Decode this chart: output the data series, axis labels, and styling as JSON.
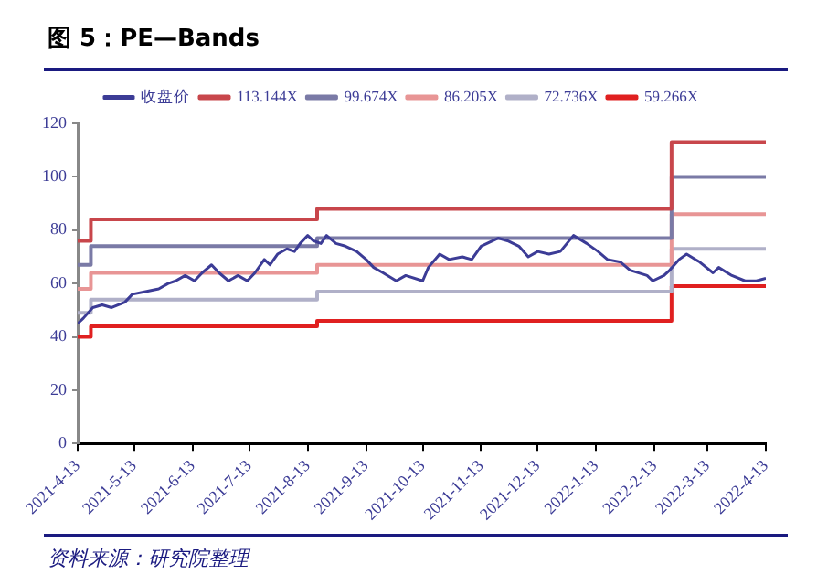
{
  "chart_data": {
    "type": "line",
    "title": "图 5：PE—Bands",
    "annotations": [
      "资料来源：研究院整理"
    ],
    "xlim": [
      "2021-04-13",
      "2022-04-13"
    ],
    "xticks": [
      {
        "value": "2021-04-13",
        "label": "2021-4-13"
      },
      {
        "value": "2021-05-13",
        "label": "2021-5-13"
      },
      {
        "value": "2021-06-13",
        "label": "2021-6-13"
      },
      {
        "value": "2021-07-13",
        "label": "2021-7-13"
      },
      {
        "value": "2021-08-13",
        "label": "2021-8-13"
      },
      {
        "value": "2021-09-13",
        "label": "2021-9-13"
      },
      {
        "value": "2021-10-13",
        "label": "2021-10-13"
      },
      {
        "value": "2021-11-13",
        "label": "2021-11-13"
      },
      {
        "value": "2021-12-13",
        "label": "2021-12-13"
      },
      {
        "value": "2022-01-13",
        "label": "2022-1-13"
      },
      {
        "value": "2022-02-13",
        "label": "2022-2-13"
      },
      {
        "value": "2022-03-13",
        "label": "2022-3-13"
      },
      {
        "value": "2022-04-13",
        "label": "2022-4-13"
      }
    ],
    "ylim": [
      0,
      120
    ],
    "yticks": [
      0,
      20,
      40,
      60,
      80,
      100,
      120
    ],
    "grid": false,
    "legend": "top",
    "marker": "none",
    "line_style": "solid",
    "series": [
      {
        "name": "收盘价",
        "color": "#3c3c96",
        "x": [
          "2021-04-13",
          "2021-04-16",
          "2021-04-21",
          "2021-04-26",
          "2021-05-01",
          "2021-05-08",
          "2021-05-12",
          "2021-05-19",
          "2021-05-26",
          "2021-05-31",
          "2021-06-04",
          "2021-06-09",
          "2021-06-14",
          "2021-06-18",
          "2021-06-23",
          "2021-06-27",
          "2021-07-02",
          "2021-07-07",
          "2021-07-12",
          "2021-07-16",
          "2021-07-21",
          "2021-07-24",
          "2021-07-28",
          "2021-08-02",
          "2021-08-06",
          "2021-08-09",
          "2021-08-13",
          "2021-08-16",
          "2021-08-20",
          "2021-08-23",
          "2021-08-28",
          "2021-09-02",
          "2021-09-08",
          "2021-09-13",
          "2021-09-17",
          "2021-09-22",
          "2021-09-29",
          "2021-10-04",
          "2021-10-13",
          "2021-10-16",
          "2021-10-22",
          "2021-10-27",
          "2021-11-03",
          "2021-11-08",
          "2021-11-13",
          "2021-11-22",
          "2021-11-27",
          "2021-12-03",
          "2021-12-08",
          "2021-12-13",
          "2021-12-19",
          "2021-12-25",
          "2022-01-01",
          "2022-01-08",
          "2022-01-14",
          "2022-01-19",
          "2022-01-26",
          "2022-01-31",
          "2022-02-09",
          "2022-02-12",
          "2022-02-18",
          "2022-02-21",
          "2022-02-26",
          "2022-03-02",
          "2022-03-09",
          "2022-03-16",
          "2022-03-19",
          "2022-03-26",
          "2022-04-02",
          "2022-04-08",
          "2022-04-13"
        ],
        "values": [
          45,
          47,
          51,
          52,
          51,
          53,
          56,
          57,
          58,
          60,
          61,
          63,
          61,
          64,
          67,
          64,
          61,
          63,
          61,
          64,
          69,
          67,
          71,
          73,
          72,
          75,
          78,
          76,
          75,
          78,
          75,
          74,
          72,
          69,
          66,
          64,
          61,
          63,
          61,
          66,
          71,
          69,
          70,
          69,
          74,
          77,
          76,
          74,
          70,
          72,
          71,
          72,
          78,
          75,
          72,
          69,
          68,
          65,
          63,
          61,
          63,
          65,
          69,
          71,
          68,
          64,
          66,
          63,
          61,
          61,
          62
        ]
      },
      {
        "name": "113.144X",
        "type": "step",
        "color": "#c8464b",
        "x": [
          "2021-04-13",
          "2021-04-20",
          "2021-08-18",
          "2022-02-22",
          "2022-04-13"
        ],
        "values": [
          76,
          84,
          88,
          113,
          113
        ]
      },
      {
        "name": "99.674X",
        "type": "step",
        "color": "#7a7aa6",
        "x": [
          "2021-04-13",
          "2021-04-20",
          "2021-08-18",
          "2022-02-22",
          "2022-04-13"
        ],
        "values": [
          67,
          74,
          77,
          100,
          100
        ]
      },
      {
        "name": "86.205X",
        "type": "step",
        "color": "#e89595",
        "x": [
          "2021-04-13",
          "2021-04-20",
          "2021-08-18",
          "2022-02-22",
          "2022-04-13"
        ],
        "values": [
          58,
          64,
          67,
          86,
          86
        ]
      },
      {
        "name": "72.736X",
        "type": "step",
        "color": "#b0b0c8",
        "x": [
          "2021-04-13",
          "2021-04-20",
          "2021-08-18",
          "2022-02-22",
          "2022-04-13"
        ],
        "values": [
          49,
          54,
          57,
          73,
          73
        ]
      },
      {
        "name": "59.266X",
        "type": "step",
        "color": "#e02020",
        "x": [
          "2021-04-13",
          "2021-04-20",
          "2021-08-18",
          "2022-02-22",
          "2022-04-13"
        ],
        "values": [
          40,
          44,
          46,
          59,
          59
        ]
      }
    ]
  }
}
